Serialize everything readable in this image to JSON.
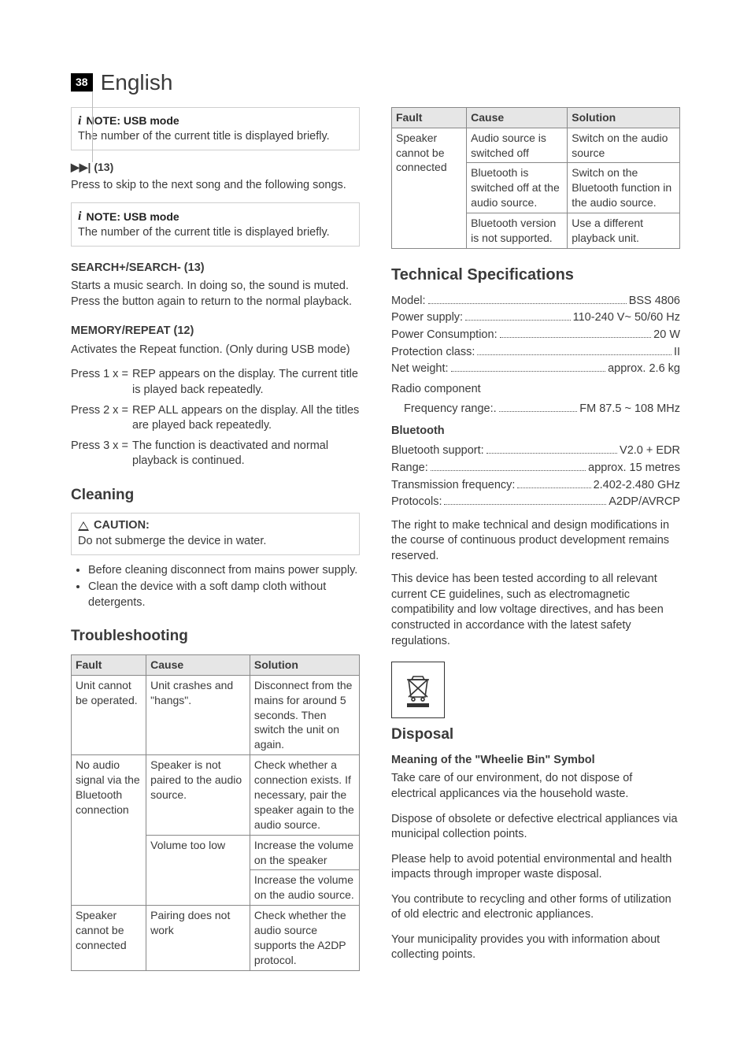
{
  "header": {
    "page": "38",
    "lang": "English"
  },
  "left": {
    "note1": {
      "title": "NOTE: USB mode",
      "text": "The number of the current title is displayed briefly."
    },
    "skip": {
      "icon": "▶▶|",
      "ref": "(13)",
      "text": "Press to skip to the next song and the following songs."
    },
    "note2": {
      "title": "NOTE: USB mode",
      "text": "The number of the current title is displayed briefly."
    },
    "search": {
      "title": "SEARCH+/SEARCH- (13)",
      "text": "Starts a music search. In doing so, the sound is muted. Press the button again to return to the normal playback."
    },
    "memory": {
      "title": "MEMORY/REPEAT (12)",
      "text": "Activates the Repeat function. (Only during USB mode)",
      "rows": [
        {
          "k": "Press 1 x =",
          "v": "REP appears on the display. The current title is played back repeatedly."
        },
        {
          "k": "Press 2 x =",
          "v": "REP ALL appears on the display. All the titles are played back repeatedly."
        },
        {
          "k": "Press 3 x =",
          "v": "The function is deactivated and normal playback is continued."
        }
      ]
    },
    "cleaning": {
      "title": "Cleaning",
      "caution_title": "CAUTION:",
      "caution_text": "Do not submerge the device in water.",
      "bullets": [
        "Before cleaning disconnect from mains power supply.",
        "Clean the device with a soft damp cloth without detergents."
      ]
    },
    "trouble": {
      "title": "Troubleshooting",
      "headers": [
        "Fault",
        "Cause",
        "Solution"
      ],
      "rows": [
        [
          "Unit cannot be operated.",
          "Unit crashes and \"hangs\".",
          "Disconnect from the mains for around 5 seconds. Then switch the unit on again."
        ],
        [
          "No audio signal via the Bluetooth connection",
          "Speaker is not paired to the audio source.",
          "Check whether a connection exists. If necessary, pair the speaker again to the audio source."
        ],
        [
          "",
          "Volume too low",
          "Increase the volume on the speaker"
        ],
        [
          "",
          "",
          "Increase the volume on the audio source."
        ],
        [
          "Speaker cannot be connected",
          "Pairing does not work",
          "Check whether the audio source supports the A2DP protocol."
        ]
      ],
      "rowspan": {
        "1": 3,
        "4": 0
      }
    }
  },
  "right": {
    "trouble2": {
      "headers": [
        "Fault",
        "Cause",
        "Solution"
      ],
      "fault0": "Speaker cannot be connected",
      "rows": [
        [
          "Audio source is switched off",
          "Switch on the audio source"
        ],
        [
          "Bluetooth is switched off at the audio source.",
          "Switch on the Bluetooth function in the audio source."
        ],
        [
          "Bluetooth version is not supported.",
          "Use a different playback unit."
        ]
      ]
    },
    "tech": {
      "title": "Technical Specifications",
      "main": [
        {
          "label": "Model:",
          "val": "BSS 4806"
        },
        {
          "label": "Power supply:",
          "val": "110-240 V~ 50/60 Hz"
        },
        {
          "label": "Power Consumption:",
          "val": "20 W"
        },
        {
          "label": "Protection class:",
          "val": "II"
        },
        {
          "label": "Net weight:",
          "val": "approx. 2.6 kg"
        }
      ],
      "radio_label": "Radio component",
      "radio": [
        {
          "label": "Frequency range:.",
          "val": "FM 87.5 ~ 108 MHz"
        }
      ],
      "bt_label": "Bluetooth",
      "bt": [
        {
          "label": "Bluetooth support:",
          "val": "V2.0 + EDR"
        },
        {
          "label": "Range:",
          "val": "approx. 15 metres"
        },
        {
          "label": "Transmission frequency:",
          "val": "2.402-2.480 GHz"
        },
        {
          "label": "Protocols:",
          "val": "A2DP/AVRCP"
        }
      ],
      "para1": "The right to make technical and design modifications in the course of continuous product development remains reserved.",
      "para2": "This device has been tested according to all relevant current CE guidelines, such as electromagnetic compatibility and low voltage directives, and has been constructed in accordance with the latest safety regulations."
    },
    "disposal": {
      "title": "Disposal",
      "subhead": "Meaning of the \"Wheelie Bin\" Symbol",
      "p1": "Take care of our environment, do not dispose of electrical applicances via the household waste.",
      "p2": "Dispose of obsolete or defective electrical appliances via municipal collection points.",
      "p3": "Please help to avoid potential environmental and health impacts through improper waste disposal.",
      "p4": "You contribute to recycling and other forms of utilization of old electric and electronic appliances.",
      "p5": "Your municipality provides you with information about collecting points."
    }
  }
}
